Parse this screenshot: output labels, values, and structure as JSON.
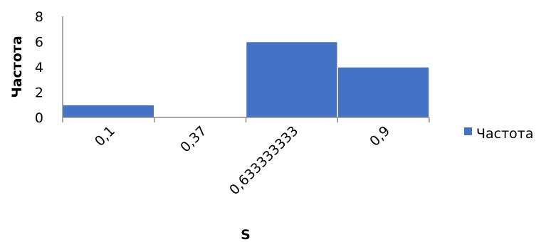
{
  "chart_data": {
    "type": "bar",
    "title": "",
    "xlabel": "S",
    "ylabel": "Частота",
    "categories": [
      "0,1",
      "0,37",
      "0,633333333",
      "0,9"
    ],
    "series": [
      {
        "name": "Частота",
        "values": [
          1,
          0,
          6,
          4
        ],
        "color": "#4472C4"
      }
    ],
    "ylim": [
      0,
      8
    ],
    "yticks": [
      "0",
      "2",
      "4",
      "6",
      "8"
    ],
    "grid": false,
    "legend_position": "right"
  }
}
